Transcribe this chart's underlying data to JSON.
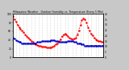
{
  "title": "Milwaukee Weather - Outdoor Humidity vs. Temperature (Every 5 Min)",
  "bg_color": "#c8c8c8",
  "plot_bg": "#ffffff",
  "red_color": "#ff0000",
  "blue_color": "#0000cc",
  "grid_color": "#aaaaaa",
  "red_y": [
    95,
    88,
    82,
    75,
    70,
    65,
    62,
    58,
    52,
    48,
    45,
    42,
    38,
    35,
    32,
    30,
    28,
    27,
    26,
    25,
    25,
    24,
    23,
    22,
    22,
    23,
    25,
    27,
    30,
    33,
    37,
    42,
    48,
    52,
    55,
    52,
    48,
    45,
    43,
    42,
    43,
    46,
    52,
    62,
    75,
    85,
    90,
    88,
    80,
    70,
    62,
    55,
    50,
    45,
    42,
    40,
    38,
    37,
    36,
    35
  ],
  "blue_y": [
    18,
    17,
    16,
    15,
    14,
    14,
    13,
    13,
    13,
    13,
    13,
    13,
    13,
    13,
    13,
    13,
    14,
    14,
    14,
    15,
    15,
    15,
    15,
    15,
    15,
    16,
    16,
    16,
    15,
    15,
    14,
    14,
    14,
    14,
    14,
    14,
    15,
    15,
    15,
    15,
    14,
    14,
    13,
    13,
    13,
    12,
    12,
    11,
    11,
    11,
    11,
    11,
    11,
    11,
    11,
    11,
    11,
    11,
    11,
    11
  ],
  "ylim_left": [
    0,
    100
  ],
  "ylim_right": [
    0,
    40
  ],
  "yticks_right": [
    0,
    5,
    10,
    15,
    20,
    25,
    30,
    35,
    40
  ],
  "yticks_left": [
    0,
    20,
    40,
    60,
    80,
    100
  ],
  "figsize": [
    1.6,
    0.87
  ],
  "dpi": 100,
  "n_points": 60
}
